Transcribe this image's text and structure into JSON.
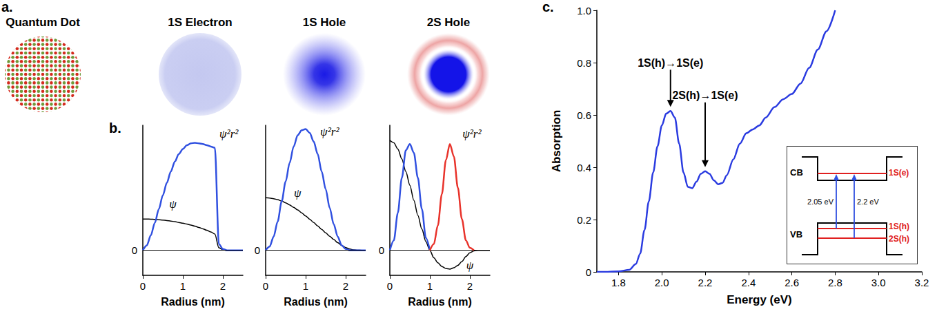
{
  "panel_labels": [
    "a.",
    "b.",
    "c."
  ],
  "diagram": {
    "items": [
      {
        "title": "Quantum Dot"
      },
      {
        "title": "1S Electron"
      },
      {
        "title": "1S Hole"
      },
      {
        "title": "2S Hole"
      }
    ]
  },
  "chart_data": [
    {
      "type": "line",
      "x_label": "Radius (nm)",
      "x": [
        0,
        0.1,
        0.2,
        0.3,
        0.4,
        0.5,
        0.6,
        0.7,
        0.8,
        0.9,
        1.0,
        1.1,
        1.2,
        1.3,
        1.4,
        1.5,
        1.6,
        1.7,
        1.8,
        1.9,
        2.0,
        2.1,
        2.2,
        2.3,
        2.4,
        2.5
      ],
      "xlim": [
        0,
        2.5
      ],
      "xticks": [
        0,
        1,
        2
      ],
      "ylim": [
        -0.2,
        1
      ],
      "yticks": [
        0
      ],
      "grid": true,
      "series": [
        {
          "color": "#000000",
          "values": [
            0.25,
            0.25,
            0.249,
            0.247,
            0.245,
            0.242,
            0.238,
            0.234,
            0.229,
            0.223,
            0.217,
            0.21,
            0.202,
            0.193,
            0.183,
            0.172,
            0.16,
            0.147,
            0.13,
            0.02,
            0.005,
            0,
            0,
            0,
            0,
            0
          ]
        },
        {
          "color": "#3050e0",
          "values": [
            0,
            0.04,
            0.12,
            0.22,
            0.33,
            0.44,
            0.54,
            0.63,
            0.71,
            0.77,
            0.81,
            0.84,
            0.855,
            0.86,
            0.855,
            0.85,
            0.84,
            0.83,
            0.82,
            0.05,
            0.01,
            0,
            0,
            0,
            0,
            0
          ]
        }
      ],
      "annotations": [
        {
          "text": "ψ²r²",
          "x": 2.15,
          "y": 0.93
        },
        {
          "text": "ψ",
          "x": 0.75,
          "y": 0.37
        }
      ]
    },
    {
      "type": "line",
      "x_label": "Radius (nm)",
      "x": [
        0,
        0.1,
        0.2,
        0.3,
        0.4,
        0.5,
        0.6,
        0.7,
        0.8,
        0.9,
        1.0,
        1.1,
        1.2,
        1.3,
        1.4,
        1.5,
        1.6,
        1.7,
        1.8,
        1.9,
        2.0,
        2.1,
        2.2,
        2.3,
        2.4,
        2.5
      ],
      "xlim": [
        0,
        2.5
      ],
      "xticks": [
        0,
        1,
        2
      ],
      "ylim": [
        -0.2,
        1
      ],
      "yticks": [
        0
      ],
      "grid": true,
      "series": [
        {
          "color": "#000000",
          "values": [
            0.42,
            0.418,
            0.413,
            0.405,
            0.394,
            0.38,
            0.363,
            0.344,
            0.323,
            0.3,
            0.275,
            0.249,
            0.222,
            0.195,
            0.167,
            0.14,
            0.113,
            0.087,
            0.062,
            0.04,
            0.022,
            0.01,
            0.004,
            0.001,
            0,
            0
          ]
        },
        {
          "color": "#3050e0",
          "values": [
            0,
            0.03,
            0.11,
            0.23,
            0.39,
            0.55,
            0.7,
            0.83,
            0.92,
            0.96,
            0.97,
            0.94,
            0.87,
            0.77,
            0.63,
            0.49,
            0.34,
            0.21,
            0.11,
            0.04,
            0.01,
            0,
            0,
            0,
            0,
            0
          ]
        }
      ],
      "annotations": [
        {
          "text": "ψ²r²",
          "x": 1.6,
          "y": 0.95
        },
        {
          "text": "ψ",
          "x": 0.8,
          "y": 0.46
        }
      ]
    },
    {
      "type": "line",
      "x_label": "Radius (nm)",
      "x": [
        0,
        0.1,
        0.2,
        0.3,
        0.4,
        0.5,
        0.6,
        0.7,
        0.8,
        0.9,
        1.0,
        1.1,
        1.2,
        1.3,
        1.4,
        1.5,
        1.6,
        1.7,
        1.8,
        1.9,
        2.0,
        2.1,
        2.2,
        2.3,
        2.4,
        2.5
      ],
      "xlim": [
        0,
        2.5
      ],
      "xticks": [
        0,
        1,
        2
      ],
      "ylim": [
        -0.2,
        1
      ],
      "yticks": [
        0
      ],
      "grid": true,
      "series": [
        {
          "color": "#000000",
          "values": [
            0.88,
            0.86,
            0.81,
            0.73,
            0.63,
            0.52,
            0.4,
            0.28,
            0.17,
            0.07,
            0,
            -0.06,
            -0.1,
            -0.13,
            -0.145,
            -0.15,
            -0.14,
            -0.12,
            -0.09,
            -0.05,
            -0.02,
            -0.005,
            0,
            0,
            0,
            0
          ]
        },
        {
          "color": "#3050e0",
          "values": [
            0,
            0.08,
            0.3,
            0.58,
            0.8,
            0.85,
            0.78,
            0.58,
            0.33,
            0.1,
            0,
            null,
            null,
            null,
            null,
            null,
            null,
            null,
            null,
            null,
            null,
            null,
            null,
            null,
            null,
            null
          ]
        },
        {
          "color": "#e8322a",
          "values": [
            null,
            null,
            null,
            null,
            null,
            null,
            null,
            null,
            null,
            null,
            0,
            0.05,
            0.2,
            0.45,
            0.72,
            0.85,
            0.75,
            0.5,
            0.25,
            0.08,
            0.02,
            0,
            null,
            null,
            null,
            null
          ]
        }
      ],
      "annotations": [
        {
          "text": "ψ²r²",
          "x": 2.05,
          "y": 0.93
        },
        {
          "text": "ψ",
          "x": 2.0,
          "y": -0.12
        }
      ]
    },
    {
      "type": "line",
      "x_label": "Energy (eV)",
      "y_label": "Absorption",
      "color": "#2a3be0",
      "x": [
        1.7,
        1.75,
        1.8,
        1.85,
        1.88,
        1.9,
        1.92,
        1.94,
        1.96,
        1.98,
        2.0,
        2.02,
        2.04,
        2.06,
        2.08,
        2.1,
        2.12,
        2.14,
        2.16,
        2.18,
        2.2,
        2.22,
        2.24,
        2.26,
        2.28,
        2.3,
        2.33,
        2.36,
        2.39,
        2.42,
        2.45,
        2.48,
        2.52,
        2.56,
        2.6,
        2.64,
        2.68,
        2.72,
        2.76,
        2.8
      ],
      "values": [
        0,
        0,
        0.002,
        0.008,
        0.03,
        0.07,
        0.16,
        0.27,
        0.38,
        0.48,
        0.56,
        0.605,
        0.615,
        0.59,
        0.49,
        0.38,
        0.325,
        0.32,
        0.345,
        0.375,
        0.385,
        0.375,
        0.35,
        0.335,
        0.34,
        0.37,
        0.43,
        0.49,
        0.53,
        0.545,
        0.56,
        0.59,
        0.63,
        0.66,
        0.68,
        0.72,
        0.78,
        0.85,
        0.92,
        1.0
      ],
      "xlim": [
        1.7,
        3.2
      ],
      "xticks": [
        1.8,
        {
          "value": 2,
          "label": "2.0"
        },
        2.2,
        2.4,
        2.6,
        2.8,
        {
          "value": 3,
          "label": "3.0"
        },
        3.2
      ],
      "ylim": [
        0,
        1
      ],
      "yticks": [
        0,
        0.2,
        0.4,
        0.6,
        0.8,
        {
          "value": 1,
          "label": "1.0"
        }
      ],
      "grid": false,
      "annotations": [
        {
          "text": "1S(h)→1S(e)",
          "x": 2.04,
          "y": 0.615
        },
        {
          "text": "2S(h)→1S(e)",
          "x": 2.2,
          "y": 0.385
        }
      ],
      "inset": {
        "bands": [
          "CB",
          "VB"
        ],
        "levels": [
          "1S(e)",
          "1S(h)",
          "2S(h)"
        ],
        "transitions": [
          "2.05 eV",
          "2.2 eV"
        ]
      }
    }
  ]
}
